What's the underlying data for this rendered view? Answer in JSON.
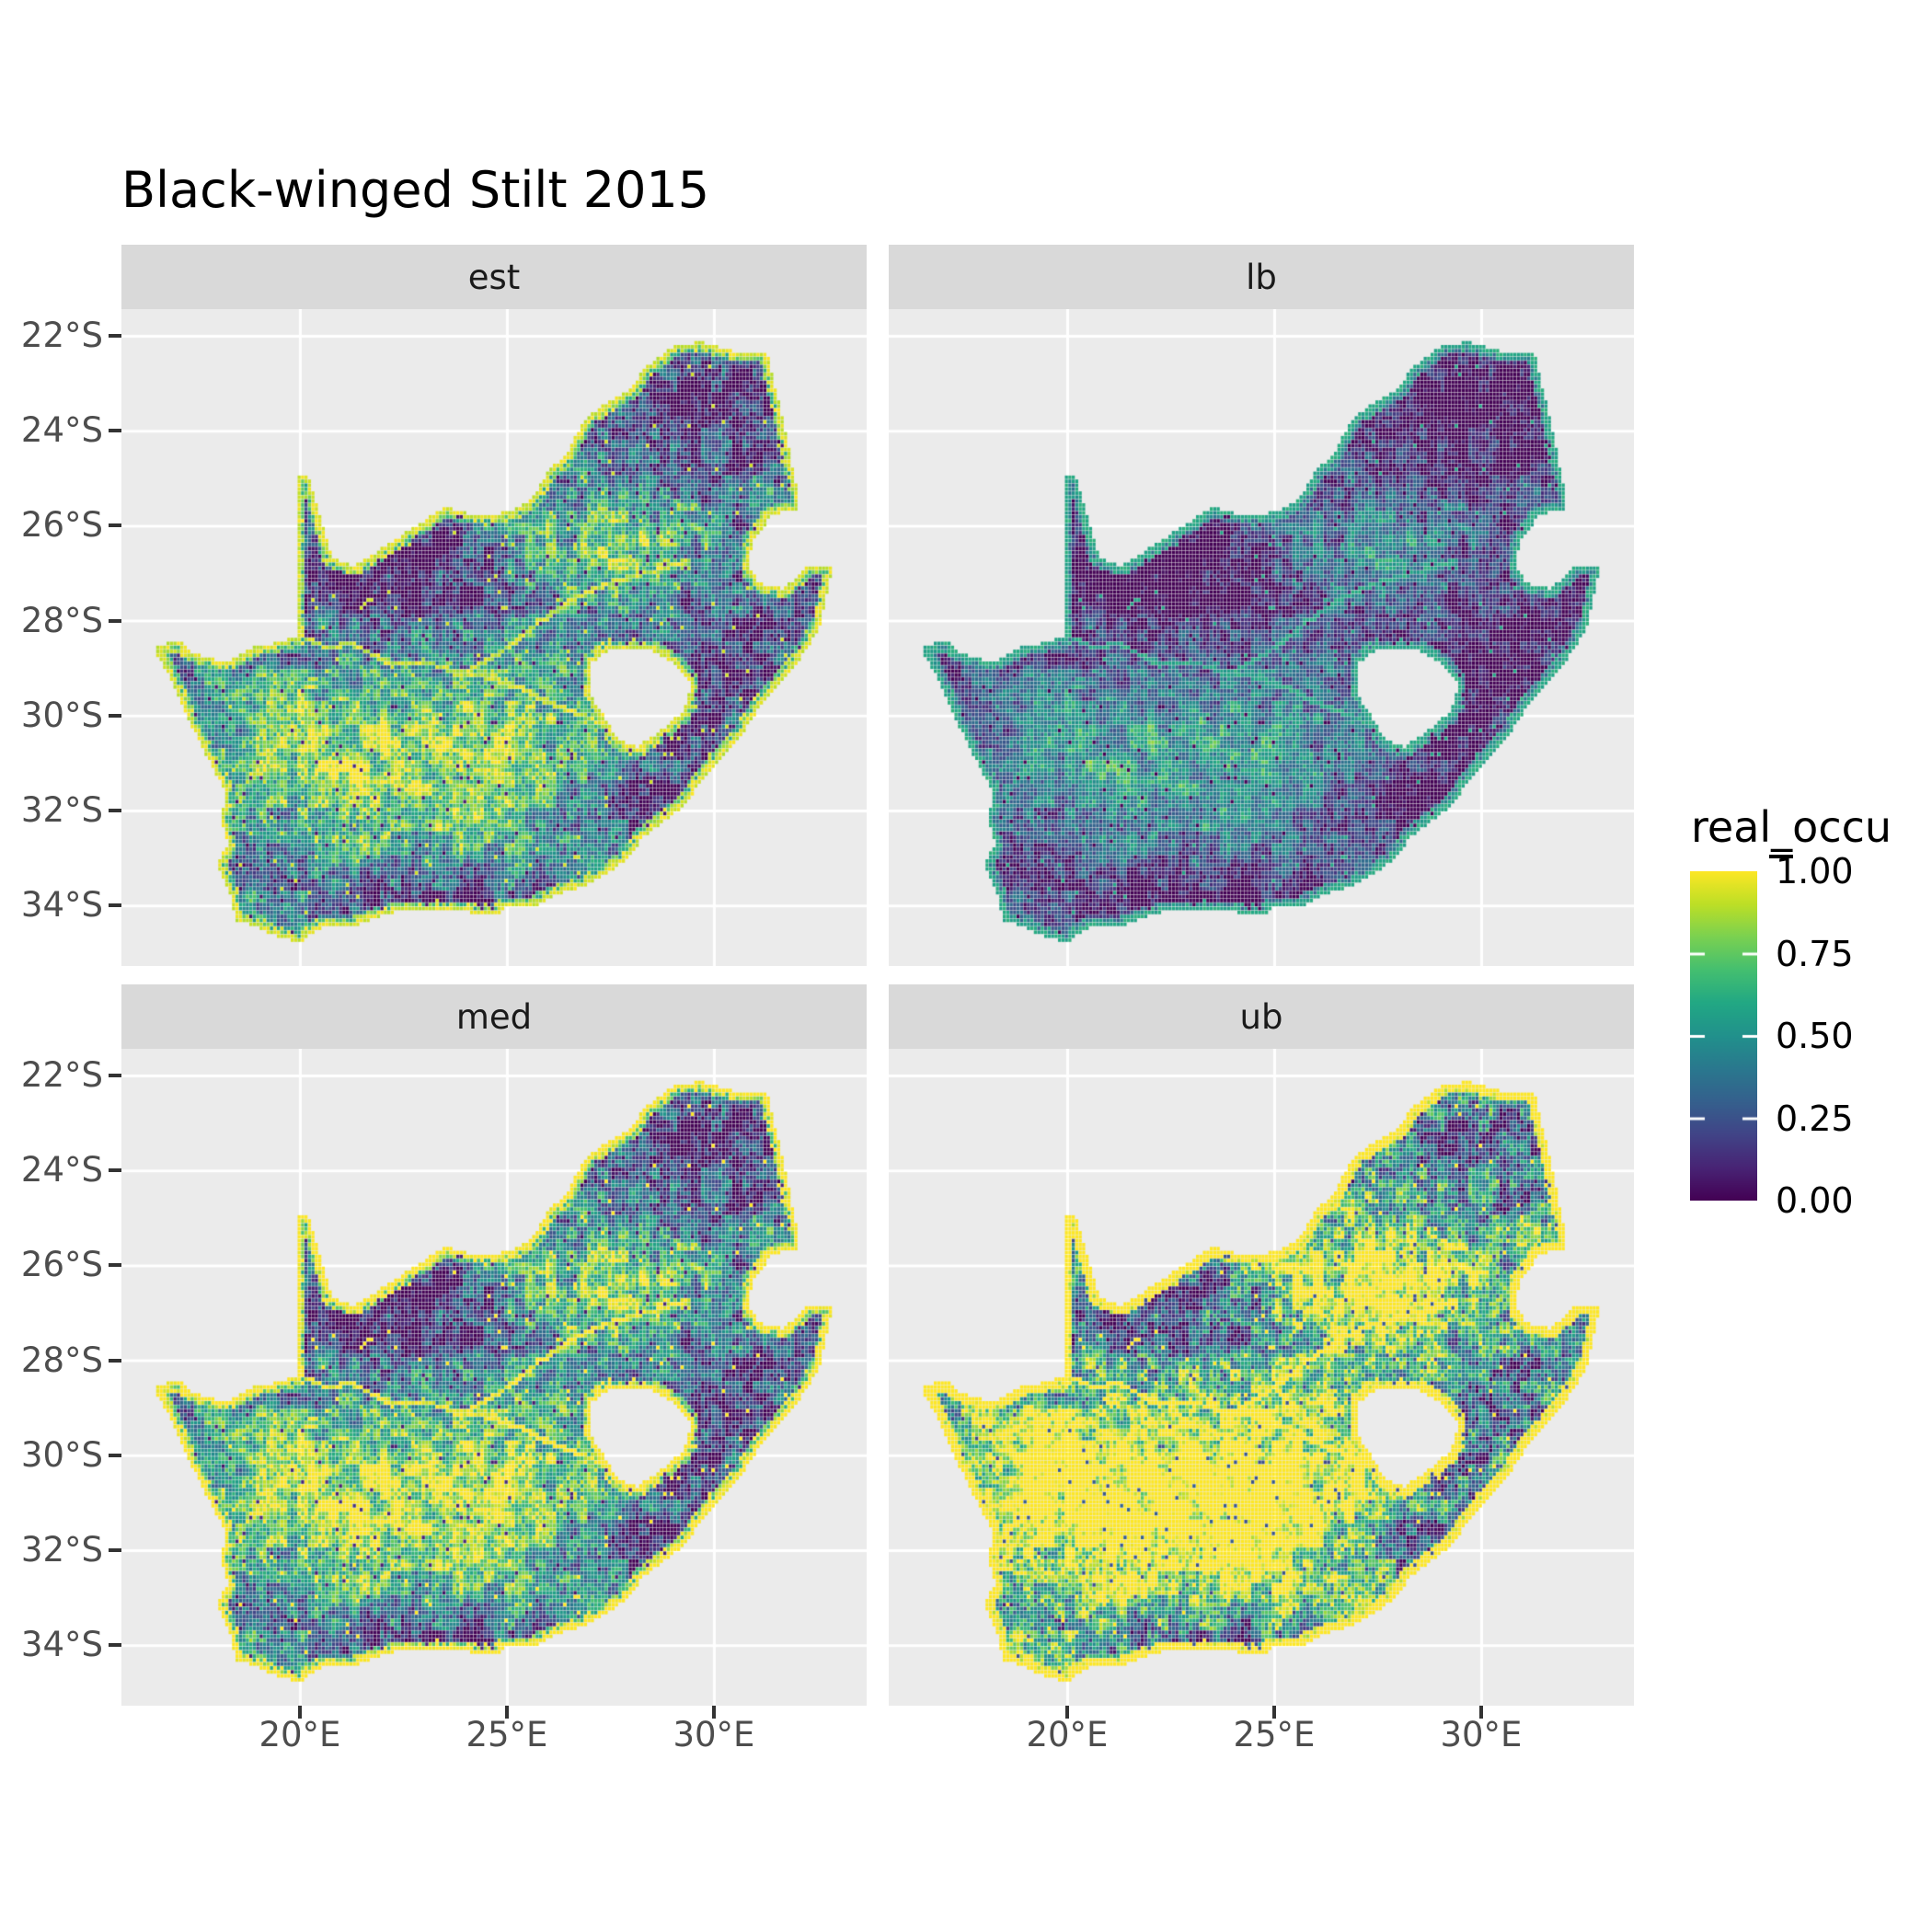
{
  "title": "Black-winged Stilt 2015",
  "theme": {
    "background": "#FFFFFF",
    "panel_bg": "#EBEBEB",
    "strip_bg": "#D9D9D9",
    "grid_color": "#FFFFFF",
    "axis_text_color": "#4D4D4D",
    "tick_color": "#333333",
    "strip_text_color": "#1A1A1A",
    "title_color": "#000000"
  },
  "chart_data": {
    "type": "heatmap",
    "subtype": "faceted-raster-map",
    "title": "Black-winged Stilt 2015",
    "region": "South Africa (pentad occupancy raster, Lesotho and Eswatini excluded)",
    "facets": [
      {
        "label": "est"
      },
      {
        "label": "lb"
      },
      {
        "label": "med"
      },
      {
        "label": "ub"
      }
    ],
    "x_axis": {
      "ticks": [
        {
          "label": "20°E",
          "value": 20
        },
        {
          "label": "25°E",
          "value": 25
        },
        {
          "label": "30°E",
          "value": 30
        }
      ]
    },
    "y_axis": {
      "ticks": [
        {
          "label": "22°S",
          "value": -22
        },
        {
          "label": "24°S",
          "value": -24
        },
        {
          "label": "26°S",
          "value": -26
        },
        {
          "label": "28°S",
          "value": -28
        },
        {
          "label": "30°S",
          "value": -30
        },
        {
          "label": "32°S",
          "value": -32
        },
        {
          "label": "34°S",
          "value": -34
        }
      ]
    },
    "extent": {
      "lon": [
        15.69,
        33.69
      ],
      "lat": [
        -35.27,
        -21.44
      ]
    },
    "grid": "major-only-white",
    "legend": {
      "title": "real_occu",
      "position": "right",
      "ticks": [
        {
          "label": "1.00",
          "value": 1.0
        },
        {
          "label": "0.75",
          "value": 0.75
        },
        {
          "label": "0.50",
          "value": 0.5
        },
        {
          "label": "0.25",
          "value": 0.25
        },
        {
          "label": "0.00",
          "value": 0.0
        }
      ]
    },
    "value_range": [
      0,
      1
    ],
    "color_scale": {
      "name": "viridis",
      "stops": [
        [
          0.0,
          "#440154"
        ],
        [
          0.1,
          "#482475"
        ],
        [
          0.2,
          "#414487"
        ],
        [
          0.3,
          "#35608D"
        ],
        [
          0.4,
          "#2A788E"
        ],
        [
          0.5,
          "#21918C"
        ],
        [
          0.6,
          "#22A884"
        ],
        [
          0.7,
          "#44BF70"
        ],
        [
          0.8,
          "#7AD151"
        ],
        [
          0.9,
          "#BDDF26"
        ],
        [
          1.0,
          "#FDE725"
        ]
      ]
    },
    "map": {
      "cell_deg": 0.0833,
      "outer": [
        [
          16.45,
          -28.58
        ],
        [
          17.05,
          -28.4
        ],
        [
          17.45,
          -28.7
        ],
        [
          18.2,
          -28.88
        ],
        [
          19.0,
          -28.5
        ],
        [
          19.55,
          -28.47
        ],
        [
          19.98,
          -28.28
        ],
        [
          19.98,
          -24.95
        ],
        [
          20.18,
          -24.9
        ],
        [
          20.78,
          -26.65
        ],
        [
          21.3,
          -26.86
        ],
        [
          22.1,
          -26.4
        ],
        [
          22.9,
          -25.95
        ],
        [
          23.5,
          -25.6
        ],
        [
          24.2,
          -25.78
        ],
        [
          25.0,
          -25.72
        ],
        [
          25.6,
          -25.45
        ],
        [
          25.95,
          -24.9
        ],
        [
          26.45,
          -24.45
        ],
        [
          26.85,
          -23.8
        ],
        [
          27.25,
          -23.5
        ],
        [
          27.95,
          -23.15
        ],
        [
          28.35,
          -22.65
        ],
        [
          29.05,
          -22.2
        ],
        [
          29.7,
          -22.12
        ],
        [
          30.3,
          -22.3
        ],
        [
          31.3,
          -22.4
        ],
        [
          31.6,
          -23.5
        ],
        [
          31.8,
          -24.3
        ],
        [
          31.98,
          -25.1
        ],
        [
          32.02,
          -25.65
        ],
        [
          31.4,
          -25.78
        ],
        [
          30.97,
          -26.3
        ],
        [
          30.82,
          -26.85
        ],
        [
          31.1,
          -27.2
        ],
        [
          31.65,
          -27.33
        ],
        [
          31.98,
          -27.1
        ],
        [
          32.15,
          -26.9
        ],
        [
          32.88,
          -26.86
        ],
        [
          32.55,
          -28.2
        ],
        [
          32.0,
          -28.9
        ],
        [
          31.2,
          -29.7
        ],
        [
          30.6,
          -30.5
        ],
        [
          30.0,
          -31.1
        ],
        [
          29.2,
          -31.95
        ],
        [
          28.3,
          -32.55
        ],
        [
          27.9,
          -33.05
        ],
        [
          27.0,
          -33.55
        ],
        [
          26.1,
          -33.8
        ],
        [
          25.65,
          -34.02
        ],
        [
          25.0,
          -33.98
        ],
        [
          24.8,
          -34.2
        ],
        [
          23.5,
          -34.1
        ],
        [
          22.2,
          -34.15
        ],
        [
          21.3,
          -34.45
        ],
        [
          20.5,
          -34.48
        ],
        [
          19.98,
          -34.8
        ],
        [
          19.35,
          -34.62
        ],
        [
          18.82,
          -34.4
        ],
        [
          18.43,
          -34.35
        ],
        [
          18.38,
          -33.92
        ],
        [
          18.0,
          -33.1
        ],
        [
          18.28,
          -32.7
        ],
        [
          18.1,
          -32.2
        ],
        [
          18.2,
          -31.6
        ],
        [
          17.6,
          -30.6
        ],
        [
          17.1,
          -29.7
        ],
        [
          16.8,
          -29.1
        ]
      ],
      "holes": [
        [
          [
            27.0,
            -28.9
          ],
          [
            27.55,
            -28.58
          ],
          [
            28.4,
            -28.58
          ],
          [
            29.0,
            -28.9
          ],
          [
            29.45,
            -29.3
          ],
          [
            29.3,
            -29.85
          ],
          [
            28.9,
            -30.2
          ],
          [
            28.15,
            -30.65
          ],
          [
            27.7,
            -30.52
          ],
          [
            27.35,
            -30.0
          ],
          [
            27.0,
            -29.55
          ]
        ]
      ],
      "rivers": [
        [
          [
            27.6,
            -30.35
          ],
          [
            26.9,
            -30.0
          ],
          [
            26.2,
            -29.8
          ],
          [
            25.4,
            -29.45
          ],
          [
            24.6,
            -29.2
          ],
          [
            23.8,
            -29.1
          ],
          [
            23.0,
            -28.85
          ],
          [
            22.2,
            -28.92
          ],
          [
            21.3,
            -28.5
          ],
          [
            20.6,
            -28.55
          ],
          [
            19.98,
            -28.3
          ],
          [
            18.2,
            -28.85
          ],
          [
            16.5,
            -28.6
          ]
        ],
        [
          [
            29.3,
            -26.75
          ],
          [
            28.6,
            -26.95
          ],
          [
            27.9,
            -27.1
          ],
          [
            27.2,
            -27.3
          ],
          [
            26.6,
            -27.55
          ],
          [
            26.0,
            -27.9
          ],
          [
            25.4,
            -28.3
          ],
          [
            24.8,
            -28.7
          ],
          [
            24.2,
            -29.0
          ],
          [
            23.8,
            -29.1
          ]
        ]
      ]
    },
    "value_model": {
      "base": 0.34,
      "blobs": [
        [
          21.0,
          -31.2,
          2.6,
          1.8,
          0.45
        ],
        [
          24.6,
          -30.8,
          2.6,
          1.9,
          0.45
        ],
        [
          26.8,
          -26.6,
          1.6,
          1.1,
          0.33
        ],
        [
          28.9,
          -26.3,
          1.3,
          0.9,
          0.28
        ],
        [
          19.0,
          -29.8,
          1.5,
          1.2,
          0.18
        ],
        [
          22.3,
          -26.9,
          2.4,
          1.6,
          -0.34
        ],
        [
          29.8,
          -23.3,
          2.3,
          1.5,
          -0.3
        ],
        [
          30.6,
          -29.3,
          1.6,
          1.9,
          -0.3
        ],
        [
          29.0,
          -32.0,
          1.9,
          1.3,
          -0.26
        ],
        [
          23.5,
          -34.0,
          3.0,
          0.8,
          -0.22
        ]
      ],
      "noise_weights": [
        0.42,
        0.36,
        0.26
      ],
      "facet_transforms": {
        "est": [
          1.0,
          0.0
        ],
        "lb": [
          0.74,
          -0.1
        ],
        "med": [
          1.06,
          0.03
        ],
        "ub": [
          1.3,
          0.17
        ]
      }
    }
  }
}
